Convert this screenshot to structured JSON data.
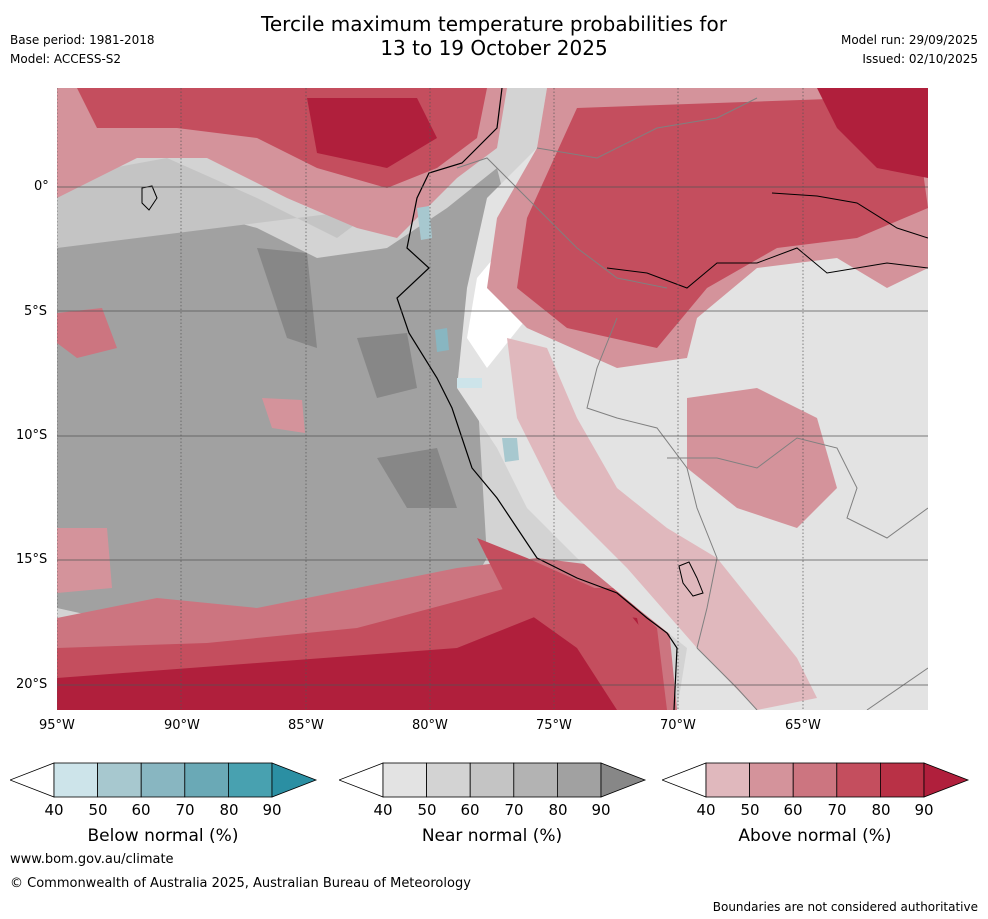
{
  "header": {
    "title_line1": "Tercile maximum temperature probabilities for",
    "title_line2": "13 to 19 October 2025",
    "base_period": "Base period: 1981-2018",
    "model": "Model: ACCESS-S2",
    "model_run": "Model run: 29/09/2025",
    "issued": "Issued: 02/10/2025"
  },
  "map": {
    "lat_labels": [
      "0°",
      "5°S",
      "10°S",
      "15°S",
      "20°S"
    ],
    "lon_labels": [
      "95°W",
      "90°W",
      "85°W",
      "80°W",
      "75°W",
      "70°W",
      "65°W"
    ]
  },
  "colorbars": [
    {
      "label": "Below normal (%)",
      "ticks": [
        "40",
        "50",
        "60",
        "70",
        "80",
        "90"
      ],
      "colors": [
        "#ffffff",
        "#cde4ea",
        "#a7c8cf",
        "#88b6c1",
        "#6aa9b6",
        "#48a1b0",
        "#2b8fa3"
      ]
    },
    {
      "label": "Near normal (%)",
      "ticks": [
        "40",
        "50",
        "60",
        "70",
        "80",
        "90"
      ],
      "colors": [
        "#ffffff",
        "#e3e3e3",
        "#d3d3d3",
        "#c4c4c4",
        "#b3b3b3",
        "#a1a1a1",
        "#878787"
      ]
    },
    {
      "label": "Above normal (%)",
      "ticks": [
        "40",
        "50",
        "60",
        "70",
        "80",
        "90"
      ],
      "colors": [
        "#ffffff",
        "#e0b8bd",
        "#d4939b",
        "#cc7580",
        "#c44e5e",
        "#b93146",
        "#b01f3c"
      ]
    }
  ],
  "footer": {
    "url": "www.bom.gov.au/climate",
    "copyright": "© Commonwealth of Australia 2025, Australian Bureau of Meteorology",
    "disclaimer": "Boundaries are not considered authoritative"
  }
}
